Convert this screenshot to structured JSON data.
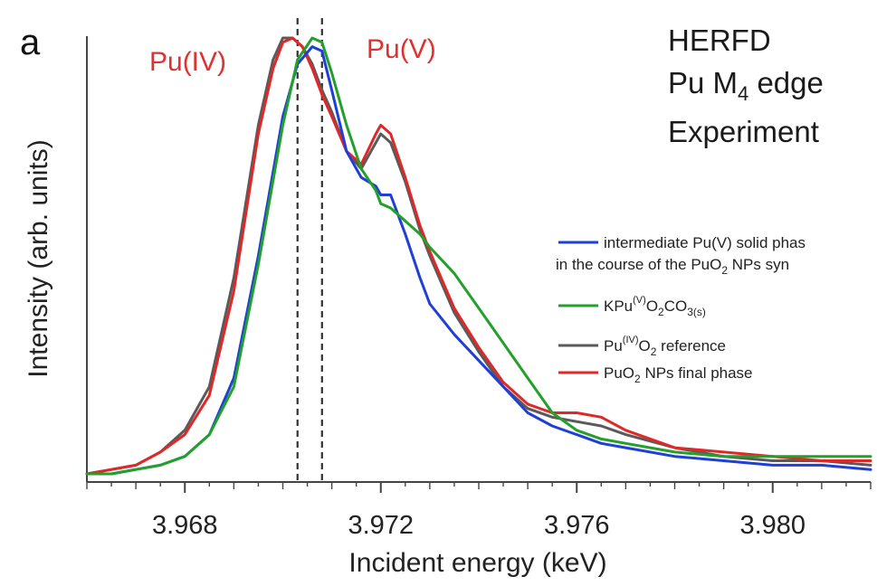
{
  "chart_data": {
    "type": "line",
    "panel_label": "a",
    "title_lines": [
      "HERFD",
      "Pu M",
      "Experiment"
    ],
    "title_edge_sub": "4",
    "title_edge_suffix": " edge",
    "annotations": {
      "pu_iv": "Pu(IV)",
      "pu_v": "Pu(V)"
    },
    "xlabel": "Incident energy (keV)",
    "ylabel": "Intensity (arb. units)",
    "xlim": [
      3.966,
      3.982
    ],
    "ylim": [
      0,
      1.05
    ],
    "x_ticks": [
      3.968,
      3.972,
      3.976,
      3.98
    ],
    "x_tick_labels": [
      "3.968",
      "3.972",
      "3.976",
      "3.980"
    ],
    "vlines": [
      3.9703,
      3.9708
    ],
    "legend": {
      "position": "right",
      "items": [
        {
          "key": "blue",
          "color": "#1f3fd6",
          "lines": [
            "intermediate Pu(V) solid phas",
            "in the course of the PuO",
            "2",
            " NPs syn"
          ]
        },
        {
          "key": "green",
          "color": "#22a02a",
          "parts": [
            "KPu",
            "(V)",
            "O",
            "2",
            "CO",
            "3(s)"
          ]
        },
        {
          "key": "gray",
          "color": "#5a5a5a",
          "parts": [
            "Pu",
            "(IV)",
            "O",
            "2",
            " reference"
          ]
        },
        {
          "key": "red",
          "color": "#e02828",
          "parts": [
            "PuO",
            "2",
            " NPs final phase"
          ]
        }
      ]
    },
    "series": [
      {
        "key": "gray",
        "color": "#5a5a5a",
        "x": [
          3.966,
          3.9665,
          3.967,
          3.9675,
          3.968,
          3.9685,
          3.969,
          3.9695,
          3.9698,
          3.97,
          3.9702,
          3.9704,
          3.9706,
          3.9708,
          3.971,
          3.9713,
          3.9716,
          3.9719,
          3.972,
          3.9722,
          3.9725,
          3.9728,
          3.973,
          3.9735,
          3.974,
          3.9745,
          3.975,
          3.9755,
          3.976,
          3.9765,
          3.977,
          3.978,
          3.979,
          3.98,
          3.981,
          3.982
        ],
        "y": [
          0.0,
          0.01,
          0.02,
          0.05,
          0.1,
          0.2,
          0.45,
          0.8,
          0.95,
          1.0,
          1.0,
          0.98,
          0.94,
          0.88,
          0.83,
          0.74,
          0.7,
          0.76,
          0.78,
          0.76,
          0.67,
          0.56,
          0.5,
          0.37,
          0.28,
          0.2,
          0.15,
          0.13,
          0.12,
          0.11,
          0.09,
          0.06,
          0.04,
          0.03,
          0.03,
          0.02
        ]
      },
      {
        "key": "red",
        "color": "#e02828",
        "x": [
          3.966,
          3.9665,
          3.967,
          3.9675,
          3.968,
          3.9685,
          3.969,
          3.9695,
          3.9698,
          3.97,
          3.9702,
          3.9704,
          3.9706,
          3.9708,
          3.971,
          3.9713,
          3.9716,
          3.9719,
          3.972,
          3.9722,
          3.9725,
          3.9728,
          3.973,
          3.9735,
          3.974,
          3.9745,
          3.975,
          3.9755,
          3.976,
          3.9765,
          3.977,
          3.978,
          3.979,
          3.98,
          3.981,
          3.982
        ],
        "y": [
          0.0,
          0.01,
          0.02,
          0.05,
          0.09,
          0.18,
          0.42,
          0.78,
          0.93,
          0.99,
          1.0,
          0.98,
          0.93,
          0.87,
          0.82,
          0.74,
          0.71,
          0.78,
          0.8,
          0.78,
          0.68,
          0.57,
          0.51,
          0.38,
          0.29,
          0.21,
          0.16,
          0.14,
          0.14,
          0.13,
          0.1,
          0.06,
          0.05,
          0.04,
          0.03,
          0.03
        ]
      },
      {
        "key": "blue",
        "color": "#1f3fd6",
        "x": [
          3.966,
          3.9665,
          3.967,
          3.9675,
          3.968,
          3.9685,
          3.969,
          3.9695,
          3.97,
          3.9703,
          3.9706,
          3.9708,
          3.971,
          3.9713,
          3.9716,
          3.9719,
          3.972,
          3.9722,
          3.9725,
          3.9728,
          3.973,
          3.9735,
          3.974,
          3.9745,
          3.975,
          3.9755,
          3.976,
          3.9765,
          3.977,
          3.978,
          3.979,
          3.98,
          3.981,
          3.982
        ],
        "y": [
          0.0,
          0.0,
          0.01,
          0.02,
          0.04,
          0.09,
          0.22,
          0.5,
          0.82,
          0.94,
          0.98,
          0.97,
          0.88,
          0.74,
          0.68,
          0.66,
          0.64,
          0.64,
          0.55,
          0.45,
          0.39,
          0.32,
          0.26,
          0.2,
          0.14,
          0.11,
          0.09,
          0.07,
          0.06,
          0.04,
          0.03,
          0.02,
          0.02,
          0.01
        ]
      },
      {
        "key": "green",
        "color": "#22a02a",
        "x": [
          3.966,
          3.9665,
          3.967,
          3.9675,
          3.968,
          3.9685,
          3.969,
          3.9695,
          3.97,
          3.9703,
          3.9706,
          3.9708,
          3.971,
          3.9713,
          3.9716,
          3.9719,
          3.972,
          3.9722,
          3.9725,
          3.9728,
          3.973,
          3.9735,
          3.974,
          3.9745,
          3.975,
          3.9755,
          3.976,
          3.9765,
          3.977,
          3.978,
          3.979,
          3.98,
          3.981,
          3.982
        ],
        "y": [
          0.0,
          0.0,
          0.01,
          0.02,
          0.04,
          0.09,
          0.2,
          0.48,
          0.8,
          0.95,
          1.0,
          0.99,
          0.92,
          0.8,
          0.7,
          0.65,
          0.62,
          0.61,
          0.58,
          0.55,
          0.52,
          0.46,
          0.38,
          0.3,
          0.22,
          0.14,
          0.1,
          0.08,
          0.07,
          0.05,
          0.04,
          0.04,
          0.04,
          0.04
        ]
      }
    ]
  }
}
